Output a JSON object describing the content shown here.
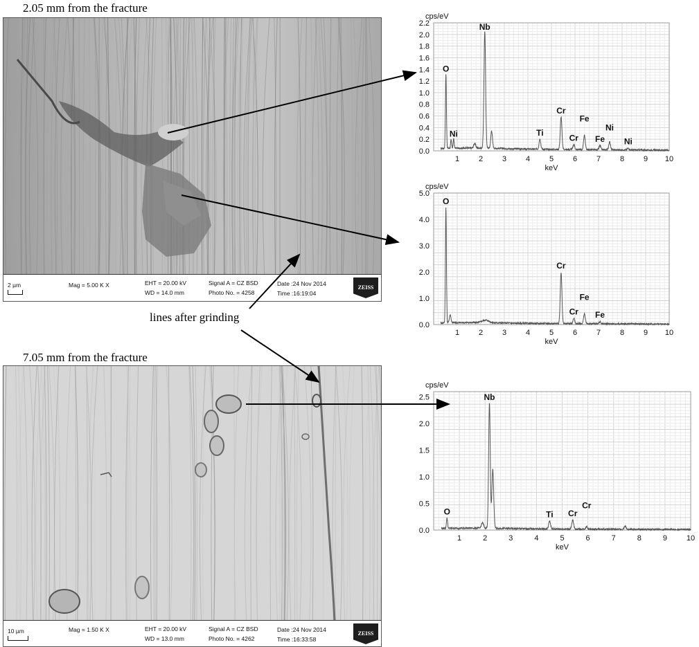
{
  "captions": {
    "top": "2.05 mm from the fracture",
    "bottom": "7.05 mm from the fracture",
    "lines": "lines after grinding"
  },
  "sem_top": {
    "scale": "2 µm",
    "mag": "Mag =   5.00 K X",
    "eht": "EHT = 20.00 kV",
    "wd": "WD = 14.0 mm",
    "signal": "Signal A = CZ BSD",
    "photo": "Photo No. = 4258",
    "date": "Date :24 Nov 2014",
    "time": "Time :16:19:04",
    "logo": "ZEISS"
  },
  "sem_bottom": {
    "scale": "10 µm",
    "mag": "Mag =   1.50 K X",
    "eht": "EHT = 20.00 kV",
    "wd": "WD = 13.0 mm",
    "signal": "Signal A = CZ BSD",
    "photo": "Photo No. = 4262",
    "date": "Date :24 Nov 2014",
    "time": "Time :16:33:58",
    "logo": "ZEISS"
  },
  "chart_data": [
    {
      "type": "line",
      "ylabel": "cps/eV",
      "xlabel": "keV",
      "xlim": [
        0,
        10
      ],
      "ylim": [
        0,
        2.2
      ],
      "xticks": [
        1,
        2,
        3,
        4,
        5,
        6,
        7,
        8,
        9,
        10
      ],
      "yticks": [
        0.0,
        0.2,
        0.4,
        0.6,
        0.8,
        1.0,
        1.2,
        1.4,
        1.6,
        1.8,
        2.0,
        2.2
      ],
      "grid": true,
      "baseline": 0.04,
      "peaks": [
        {
          "x": 0.52,
          "y": 1.28,
          "w": 0.03
        },
        {
          "x": 0.74,
          "y": 0.14,
          "w": 0.03
        },
        {
          "x": 0.85,
          "y": 0.16,
          "w": 0.03
        },
        {
          "x": 1.74,
          "y": 0.08,
          "w": 0.06
        },
        {
          "x": 2.17,
          "y": 2.0,
          "w": 0.05
        },
        {
          "x": 2.46,
          "y": 0.3,
          "w": 0.05
        },
        {
          "x": 4.51,
          "y": 0.18,
          "w": 0.05
        },
        {
          "x": 5.41,
          "y": 0.56,
          "w": 0.05
        },
        {
          "x": 5.95,
          "y": 0.09,
          "w": 0.05
        },
        {
          "x": 6.4,
          "y": 0.25,
          "w": 0.05
        },
        {
          "x": 7.06,
          "y": 0.07,
          "w": 0.05
        },
        {
          "x": 7.47,
          "y": 0.14,
          "w": 0.05
        },
        {
          "x": 8.26,
          "y": 0.03,
          "w": 0.05
        }
      ],
      "labels": [
        {
          "text": "O",
          "x": 0.52,
          "y": 1.28
        },
        {
          "text": "Ni",
          "x": 0.85,
          "y": 0.16
        },
        {
          "text": "Nb",
          "x": 2.17,
          "y": 2.0
        },
        {
          "text": "Ti",
          "x": 4.51,
          "y": 0.18
        },
        {
          "text": "Cr",
          "x": 5.41,
          "y": 0.56
        },
        {
          "text": "Cr",
          "x": 5.95,
          "y": 0.09
        },
        {
          "text": "Fe",
          "x": 6.4,
          "y": 0.42
        },
        {
          "text": "Fe",
          "x": 7.06,
          "y": 0.07
        },
        {
          "text": "Ni",
          "x": 7.47,
          "y": 0.27
        },
        {
          "text": "Ni",
          "x": 8.26,
          "y": 0.03
        }
      ]
    },
    {
      "type": "line",
      "ylabel": "cps/eV",
      "xlabel": "keV",
      "xlim": [
        0,
        10
      ],
      "ylim": [
        0,
        5.0
      ],
      "xticks": [
        1,
        2,
        3,
        4,
        5,
        6,
        7,
        8,
        9,
        10
      ],
      "yticks": [
        0.0,
        1.0,
        2.0,
        3.0,
        4.0,
        5.0
      ],
      "grid": true,
      "baseline": 0.06,
      "peaks": [
        {
          "x": 0.52,
          "y": 4.4,
          "w": 0.03
        },
        {
          "x": 0.7,
          "y": 0.3,
          "w": 0.05
        },
        {
          "x": 2.2,
          "y": 0.1,
          "w": 0.2
        },
        {
          "x": 5.41,
          "y": 1.95,
          "w": 0.05
        },
        {
          "x": 5.95,
          "y": 0.2,
          "w": 0.05
        },
        {
          "x": 6.4,
          "y": 0.38,
          "w": 0.05
        },
        {
          "x": 7.06,
          "y": 0.08,
          "w": 0.05
        }
      ],
      "labels": [
        {
          "text": "O",
          "x": 0.52,
          "y": 4.4
        },
        {
          "text": "Cr",
          "x": 5.41,
          "y": 1.95
        },
        {
          "text": "Cr",
          "x": 5.95,
          "y": 0.2
        },
        {
          "text": "Fe",
          "x": 6.4,
          "y": 0.75
        },
        {
          "text": "Fe",
          "x": 7.06,
          "y": 0.08
        }
      ]
    },
    {
      "type": "line",
      "ylabel": "cps/eV",
      "xlabel": "keV",
      "xlim": [
        0,
        10
      ],
      "ylim": [
        0,
        2.6
      ],
      "xticks": [
        1,
        2,
        3,
        4,
        5,
        6,
        7,
        8,
        9,
        10
      ],
      "yticks": [
        0.0,
        0.5,
        1.0,
        1.5,
        2.0,
        2.5
      ],
      "grid": true,
      "baseline": 0.03,
      "peaks": [
        {
          "x": 0.52,
          "y": 0.2,
          "w": 0.03
        },
        {
          "x": 1.9,
          "y": 0.1,
          "w": 0.06
        },
        {
          "x": 2.17,
          "y": 2.35,
          "w": 0.045
        },
        {
          "x": 2.3,
          "y": 1.1,
          "w": 0.05
        },
        {
          "x": 4.51,
          "y": 0.15,
          "w": 0.05
        },
        {
          "x": 5.41,
          "y": 0.17,
          "w": 0.05
        },
        {
          "x": 5.95,
          "y": 0.05,
          "w": 0.05
        },
        {
          "x": 7.45,
          "y": 0.06,
          "w": 0.05
        }
      ],
      "labels": [
        {
          "text": "O",
          "x": 0.52,
          "y": 0.2
        },
        {
          "text": "Nb",
          "x": 2.17,
          "y": 2.35
        },
        {
          "text": "Ti",
          "x": 4.51,
          "y": 0.15
        },
        {
          "text": "Cr",
          "x": 5.41,
          "y": 0.17
        },
        {
          "text": "Cr",
          "x": 5.95,
          "y": 0.32
        }
      ]
    }
  ]
}
